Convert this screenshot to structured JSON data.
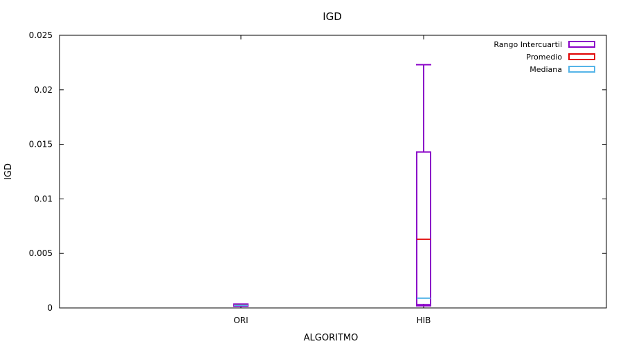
{
  "chart_data": {
    "type": "boxplot",
    "title": "IGD",
    "xlabel": "ALGORITMO",
    "ylabel": "IGD",
    "categories": [
      "ORI",
      "HIB"
    ],
    "ylim": [
      0,
      0.025
    ],
    "yticks": [
      0,
      0.005,
      0.01,
      0.015,
      0.02,
      0.025
    ],
    "ytick_labels": [
      "0",
      "0.005",
      "0.01",
      "0.015",
      "0.02",
      "0.025"
    ],
    "grid": false,
    "legend_position": "top-right",
    "legend": [
      {
        "label": "Rango Intercuartil",
        "color": "#8a00c8",
        "key": "iqr"
      },
      {
        "label": "Promedio",
        "color": "#e00000",
        "key": "mean"
      },
      {
        "label": "Mediana",
        "color": "#55b4e8",
        "key": "median"
      }
    ],
    "boxes": [
      {
        "category": "ORI",
        "whisker_low": 0.00015,
        "q1": 0.00018,
        "median": 0.00024,
        "mean": 0.00026,
        "q3": 0.00032,
        "whisker_high": 0.00036
      },
      {
        "category": "HIB",
        "whisker_low": 0.0002,
        "q1": 0.0003,
        "median": 0.0009,
        "mean": 0.0063,
        "q3": 0.0143,
        "whisker_high": 0.0223
      }
    ]
  }
}
